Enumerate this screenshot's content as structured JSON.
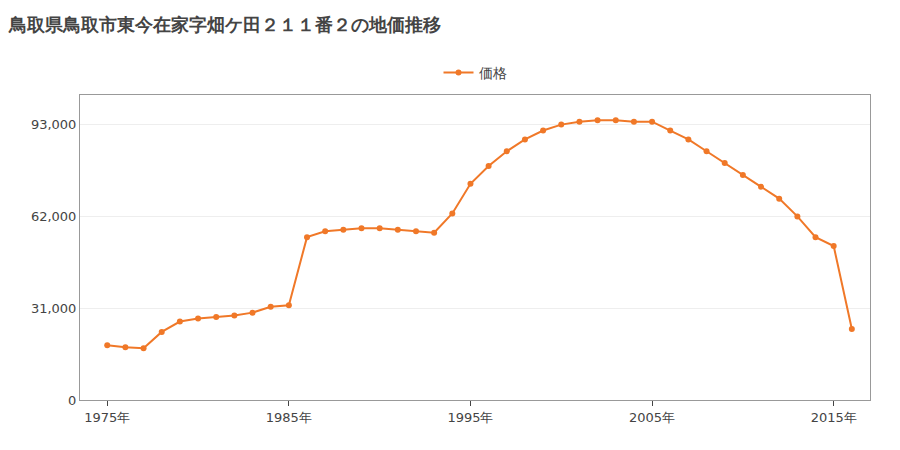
{
  "chart_data": {
    "type": "line",
    "title": "鳥取県鳥取市東今在家字畑ケ田２１１番２の地価推移",
    "x": [
      1975,
      1976,
      1977,
      1978,
      1979,
      1980,
      1981,
      1982,
      1983,
      1984,
      1985,
      1986,
      1987,
      1988,
      1989,
      1990,
      1991,
      1992,
      1993,
      1994,
      1995,
      1996,
      1997,
      1998,
      1999,
      2000,
      2001,
      2002,
      2003,
      2004,
      2005,
      2006,
      2007,
      2008,
      2009,
      2010,
      2011,
      2012,
      2013,
      2014,
      2015,
      2016
    ],
    "series": [
      {
        "name": "価格",
        "color": "#f07828",
        "marker": "circle",
        "line_style": "solid",
        "values": [
          18500,
          17800,
          17500,
          23000,
          26500,
          27500,
          28000,
          28500,
          29500,
          31500,
          32000,
          55000,
          57000,
          57500,
          58000,
          58000,
          57500,
          57000,
          56500,
          63000,
          73000,
          79000,
          84000,
          88000,
          91000,
          93000,
          94000,
          94500,
          94500,
          94000,
          94000,
          91000,
          88000,
          84000,
          80000,
          76000,
          72000,
          68000,
          62000,
          55000,
          52000,
          24000
        ]
      }
    ],
    "xlim": [
      1973.5,
      2017
    ],
    "xticks": [
      {
        "value": 1975,
        "label": "1975年"
      },
      {
        "value": 1985,
        "label": "1985年"
      },
      {
        "value": 1995,
        "label": "1995年"
      },
      {
        "value": 2005,
        "label": "2005年"
      },
      {
        "value": 2015,
        "label": "2015年"
      }
    ],
    "ylim": [
      0,
      103000
    ],
    "yticks": [
      0,
      {
        "value": 31000,
        "label": "31,000"
      },
      {
        "value": 62000,
        "label": "62,000"
      },
      {
        "value": 93000,
        "label": "93,000"
      }
    ],
    "grid": true,
    "legend": "top"
  }
}
